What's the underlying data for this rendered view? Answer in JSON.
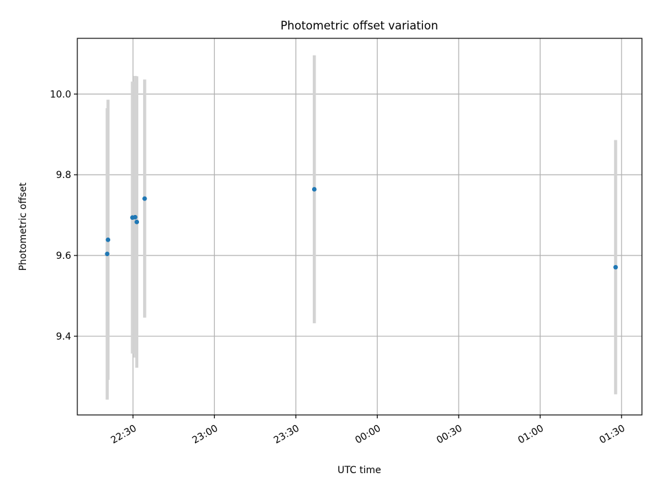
{
  "chart_data": {
    "type": "scatter",
    "title": "Photometric offset variation",
    "xlabel": "UTC time",
    "ylabel": "Photometric offset",
    "x_axis": {
      "unit": "UTC time",
      "ticks": [
        {
          "label": "22:30",
          "minutes": 0
        },
        {
          "label": "23:00",
          "minutes": 30
        },
        {
          "label": "23:30",
          "minutes": 60
        },
        {
          "label": "00:00",
          "minutes": 90
        },
        {
          "label": "00:30",
          "minutes": 120
        },
        {
          "label": "01:00",
          "minutes": 150
        },
        {
          "label": "01:30",
          "minutes": 180
        }
      ],
      "range_minutes": [
        -20.5,
        187.5
      ],
      "tick_label_rotation": "slanted"
    },
    "y_axis": {
      "ticks": [
        "9.4",
        "9.6",
        "9.8",
        "10.0"
      ],
      "ylim": [
        9.205,
        10.138
      ]
    },
    "grid": true,
    "points": [
      {
        "time": "22:20:30",
        "minutes": -9.5,
        "y": 9.604,
        "err_low": 9.243,
        "err_high": 9.965
      },
      {
        "time": "22:20:50",
        "minutes": -9.2,
        "y": 9.639,
        "err_low": 9.292,
        "err_high": 9.986
      },
      {
        "time": "22:29:50",
        "minutes": -0.2,
        "y": 9.694,
        "err_low": 9.357,
        "err_high": 10.031
      },
      {
        "time": "22:30:50",
        "minutes": 0.8,
        "y": 9.695,
        "err_low": 9.347,
        "err_high": 10.045
      },
      {
        "time": "22:31:25",
        "minutes": 1.4,
        "y": 9.683,
        "err_low": 9.322,
        "err_high": 10.044
      },
      {
        "time": "22:34:15",
        "minutes": 4.3,
        "y": 9.741,
        "err_low": 9.446,
        "err_high": 10.036
      },
      {
        "time": "23:36:45",
        "minutes": 66.8,
        "y": 9.764,
        "err_low": 9.432,
        "err_high": 10.096
      },
      {
        "time": "01:27:45",
        "minutes": 177.8,
        "y": 9.571,
        "err_low": 9.256,
        "err_high": 9.886
      }
    ],
    "colors": {
      "marker": "#1f77b4",
      "errorbar": "#d3d3d3",
      "grid": "#b0b0b0",
      "axes": "#000000"
    }
  }
}
